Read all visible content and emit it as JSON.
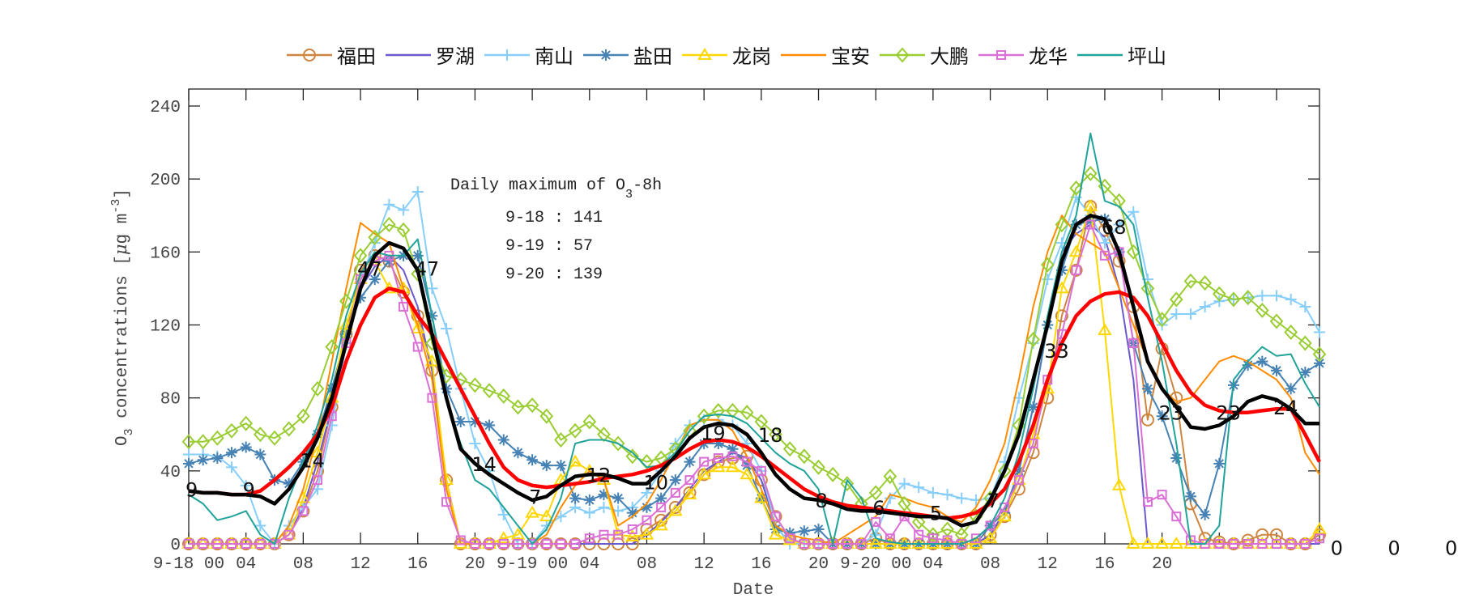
{
  "chart_data": {
    "type": "line",
    "xlabel": "Date",
    "ylabel": "O3 concentrations [μg m-3]",
    "ylabel_parts": {
      "pre": "O",
      "sub": "3",
      "mid": " concentrations [",
      "mu": "μ",
      "after_mu": "g m",
      "sup": "-3",
      "post": "]"
    },
    "ylim": [
      0,
      250
    ],
    "yticks": [
      0,
      40,
      80,
      120,
      160,
      200,
      240
    ],
    "x_hours_range": [
      0,
      79
    ],
    "xticks": [
      {
        "h": 0,
        "label": "9-18 00"
      },
      {
        "h": 4,
        "label": "04"
      },
      {
        "h": 8,
        "label": "08"
      },
      {
        "h": 12,
        "label": "12"
      },
      {
        "h": 16,
        "label": "16"
      },
      {
        "h": 20,
        "label": "20"
      },
      {
        "h": 24,
        "label": "9-19 00"
      },
      {
        "h": 28,
        "label": "04"
      },
      {
        "h": 32,
        "label": "08"
      },
      {
        "h": 36,
        "label": "12"
      },
      {
        "h": 40,
        "label": "16"
      },
      {
        "h": 44,
        "label": "20"
      },
      {
        "h": 48,
        "label": "9-20 00"
      },
      {
        "h": 52,
        "label": "04"
      },
      {
        "h": 56,
        "label": "08"
      },
      {
        "h": 60,
        "label": "12"
      },
      {
        "h": 64,
        "label": "16"
      },
      {
        "h": 68,
        "label": "20"
      },
      {
        "h": 72,
        "label": ""
      },
      {
        "h": 76,
        "label": ""
      }
    ],
    "grid": false,
    "legend_placement": "top-outside",
    "series": [
      {
        "name": "福田",
        "color": "#CD853F",
        "marker": "circle",
        "values": [
          0,
          0,
          0,
          0,
          0,
          0,
          0,
          5,
          18,
          40,
          75,
          115,
          150,
          158,
          155,
          138,
          125,
          95,
          35,
          0,
          0,
          0,
          0,
          0,
          0,
          0,
          0,
          0,
          0,
          0,
          0,
          0,
          8,
          13,
          20,
          28,
          38,
          45,
          47,
          48,
          35,
          15,
          3,
          0,
          0,
          0,
          0,
          0,
          3,
          0,
          0,
          0,
          0,
          0,
          0,
          0,
          5,
          15,
          30,
          50,
          80,
          125,
          150,
          185,
          172,
          155,
          130,
          68,
          107,
          80,
          22,
          3,
          1,
          0,
          2,
          5,
          5,
          0,
          0,
          5
        ]
      },
      {
        "name": "罗湖",
        "color": "#6A5ACD",
        "marker": "none",
        "values": [
          0,
          0,
          0,
          0,
          0,
          0,
          0,
          5,
          20,
          45,
          75,
          112,
          140,
          152,
          158,
          150,
          130,
          95,
          35,
          0,
          0,
          0,
          0,
          0,
          0,
          0,
          0,
          0,
          0,
          0,
          0,
          0,
          5,
          12,
          20,
          30,
          40,
          45,
          50,
          47,
          35,
          10,
          0,
          0,
          0,
          0,
          0,
          0,
          0,
          0,
          0,
          0,
          0,
          0,
          0,
          0,
          5,
          18,
          40,
          75,
          120,
          160,
          170,
          175,
          168,
          140,
          90,
          0,
          0,
          0,
          0,
          0,
          0,
          0,
          0,
          0,
          0,
          0,
          0,
          0
        ]
      },
      {
        "name": "南山",
        "color": "#87CEFA",
        "marker": "plus",
        "values": [
          49,
          49,
          48,
          42,
          32,
          10,
          0,
          10,
          20,
          30,
          65,
          110,
          145,
          165,
          186,
          183,
          193,
          140,
          118,
          85,
          55,
          40,
          16,
          0,
          0,
          10,
          15,
          20,
          17,
          20,
          18,
          20,
          28,
          40,
          55,
          65,
          68,
          68,
          65,
          55,
          40,
          10,
          0,
          0,
          0,
          0,
          0,
          0,
          5,
          25,
          33,
          31,
          28,
          27,
          25,
          24,
          25,
          45,
          80,
          110,
          145,
          165,
          190,
          180,
          165,
          175,
          182,
          145,
          120,
          126,
          126,
          130,
          133,
          134,
          135,
          136,
          136,
          134,
          130,
          116
        ]
      },
      {
        "name": "盐田",
        "color": "#4682B4",
        "marker": "star",
        "values": [
          44,
          46,
          47,
          50,
          53,
          49,
          35,
          33,
          45,
          60,
          85,
          115,
          135,
          145,
          155,
          158,
          158,
          125,
          85,
          67,
          67,
          65,
          57,
          50,
          46,
          43,
          43,
          25,
          24,
          27,
          25,
          17,
          20,
          25,
          35,
          45,
          55,
          55,
          52,
          43,
          25,
          8,
          6,
          7,
          8,
          0,
          0,
          0,
          0,
          0,
          0,
          0,
          0,
          0,
          0,
          0,
          10,
          17,
          40,
          75,
          120,
          150,
          175,
          177,
          178,
          160,
          110,
          85,
          70,
          47,
          26,
          16,
          44,
          87,
          98,
          100,
          95,
          85,
          94,
          99
        ]
      },
      {
        "name": "龙岗",
        "color": "#FFD700",
        "marker": "triangle",
        "values": [
          0,
          0,
          0,
          0,
          0,
          0,
          0,
          5,
          25,
          50,
          80,
          120,
          145,
          155,
          140,
          140,
          118,
          100,
          35,
          0,
          0,
          0,
          3,
          5,
          17,
          15,
          35,
          45,
          40,
          35,
          5,
          4,
          5,
          10,
          18,
          27,
          38,
          42,
          42,
          38,
          25,
          5,
          2,
          0,
          0,
          0,
          0,
          0,
          0,
          0,
          0,
          0,
          0,
          0,
          0,
          0,
          3,
          15,
          35,
          60,
          85,
          140,
          160,
          185,
          117,
          32,
          0,
          0,
          0,
          0,
          0,
          0,
          0,
          0,
          0,
          0,
          0,
          0,
          0,
          8
        ]
      },
      {
        "name": "宝安",
        "color": "#FF8C00",
        "marker": "none",
        "values": [
          0,
          0,
          0,
          0,
          0,
          0,
          0,
          10,
          30,
          60,
          100,
          140,
          176,
          170,
          165,
          140,
          120,
          90,
          30,
          0,
          0,
          0,
          0,
          0,
          0,
          5,
          20,
          32,
          40,
          35,
          10,
          15,
          22,
          35,
          50,
          65,
          68,
          68,
          62,
          48,
          30,
          10,
          5,
          3,
          2,
          0,
          5,
          10,
          15,
          27,
          25,
          22,
          20,
          15,
          12,
          20,
          35,
          55,
          90,
          130,
          160,
          180,
          170,
          165,
          160,
          140,
          120,
          100,
          85,
          78,
          80,
          90,
          100,
          103,
          100,
          95,
          90,
          80,
          50,
          38
        ]
      },
      {
        "name": "大鹏",
        "color": "#9ACD32",
        "marker": "diamond",
        "values": [
          56,
          56,
          58,
          62,
          66,
          60,
          58,
          63,
          70,
          85,
          108,
          133,
          158,
          168,
          175,
          172,
          148,
          110,
          92,
          90,
          87,
          84,
          81,
          75,
          76,
          70,
          57,
          62,
          67,
          60,
          55,
          48,
          45,
          47,
          52,
          62,
          70,
          73,
          73,
          72,
          67,
          60,
          52,
          48,
          42,
          38,
          33,
          22,
          28,
          37,
          22,
          12,
          5,
          8,
          5,
          15,
          25,
          40,
          65,
          112,
          153,
          175,
          195,
          203,
          196,
          188,
          160,
          140,
          123,
          134,
          144,
          143,
          137,
          134,
          135,
          128,
          122,
          116,
          110,
          104
        ]
      },
      {
        "name": "龙华",
        "color": "#DA70D6",
        "marker": "square",
        "values": [
          0,
          0,
          0,
          0,
          0,
          0,
          0,
          5,
          18,
          35,
          70,
          110,
          145,
          155,
          158,
          130,
          108,
          80,
          23,
          2,
          0,
          0,
          0,
          0,
          0,
          0,
          0,
          0,
          3,
          5,
          5,
          8,
          13,
          20,
          28,
          35,
          45,
          47,
          48,
          45,
          40,
          15,
          3,
          0,
          0,
          0,
          0,
          0,
          12,
          3,
          15,
          5,
          3,
          2,
          0,
          3,
          10,
          20,
          35,
          55,
          90,
          115,
          150,
          175,
          158,
          160,
          110,
          23,
          27,
          15,
          2,
          0,
          0,
          0,
          0,
          0,
          0,
          0,
          0,
          3
        ]
      },
      {
        "name": "坪山",
        "color": "#20A39A",
        "marker": "none",
        "values": [
          27,
          22,
          13,
          15,
          18,
          5,
          0,
          25,
          45,
          65,
          90,
          125,
          148,
          160,
          158,
          158,
          167,
          125,
          80,
          55,
          35,
          30,
          20,
          10,
          0,
          8,
          25,
          55,
          57,
          57,
          55,
          50,
          42,
          43,
          50,
          62,
          70,
          71,
          70,
          66,
          58,
          50,
          44,
          40,
          30,
          0,
          35,
          25,
          3,
          1,
          0,
          0,
          0,
          0,
          0,
          3,
          10,
          25,
          50,
          85,
          125,
          160,
          180,
          225,
          188,
          185,
          175,
          135,
          100,
          55,
          0,
          0,
          10,
          90,
          100,
          108,
          103,
          104,
          88,
          75
        ]
      },
      {
        "color": "#000000",
        "marker": "none",
        "thick": true,
        "values": [
          29,
          28,
          28,
          27,
          27,
          26,
          22,
          30,
          42,
          58,
          80,
          110,
          140,
          158,
          165,
          162,
          150,
          115,
          80,
          52,
          44,
          38,
          33,
          28,
          24,
          26,
          32,
          37,
          38,
          38,
          36,
          33,
          33,
          40,
          48,
          58,
          64,
          66,
          65,
          60,
          50,
          38,
          30,
          25,
          24,
          22,
          19,
          18,
          18,
          17,
          16,
          15,
          15,
          14,
          10,
          12,
          24,
          40,
          60,
          90,
          120,
          155,
          175,
          180,
          178,
          160,
          130,
          100,
          85,
          75,
          64,
          63,
          65,
          70,
          78,
          81,
          79,
          74,
          66,
          66
        ]
      },
      {
        "color": "#FF0000",
        "marker": "none",
        "thick": true,
        "values": [
          29,
          28,
          28,
          27,
          27,
          29,
          35,
          42,
          50,
          60,
          75,
          100,
          120,
          135,
          140,
          138,
          125,
          115,
          100,
          85,
          70,
          55,
          42,
          35,
          32,
          31,
          32,
          33,
          34,
          36,
          37,
          38,
          40,
          43,
          47,
          52,
          56,
          57,
          56,
          53,
          48,
          42,
          36,
          30,
          26,
          23,
          21,
          20,
          19,
          18,
          17,
          16,
          15,
          14,
          15,
          17,
          22,
          30,
          45,
          65,
          90,
          110,
          125,
          133,
          137,
          138,
          135,
          125,
          110,
          95,
          83,
          76,
          73,
          72,
          72,
          73,
          74,
          74,
          60,
          45
        ]
      }
    ],
    "annotations": [
      {
        "h": 0,
        "v": 26,
        "text": "9"
      },
      {
        "h": 4,
        "v": 26,
        "text": "9"
      },
      {
        "h": 8,
        "v": 42,
        "text": "14"
      },
      {
        "h": 12,
        "v": 147,
        "text": "47"
      },
      {
        "h": 16,
        "v": 147,
        "text": "47"
      },
      {
        "h": 20,
        "v": 40,
        "text": "14"
      },
      {
        "h": 24,
        "v": 22,
        "text": "7"
      },
      {
        "h": 28,
        "v": 34,
        "text": "12"
      },
      {
        "h": 32,
        "v": 30,
        "text": "10"
      },
      {
        "h": 36,
        "v": 57,
        "text": "19"
      },
      {
        "h": 40,
        "v": 56,
        "text": "18"
      },
      {
        "h": 44,
        "v": 20,
        "text": "8"
      },
      {
        "h": 48,
        "v": 16,
        "text": "6"
      },
      {
        "h": 52,
        "v": 13,
        "text": "5"
      },
      {
        "h": 56,
        "v": 20,
        "text": "7"
      },
      {
        "h": 60,
        "v": 102,
        "text": "33"
      },
      {
        "h": 64,
        "v": 170,
        "text": "68"
      },
      {
        "h": 68,
        "v": 68,
        "text": "23"
      },
      {
        "h": 72,
        "v": 68,
        "text": "23"
      },
      {
        "h": 76,
        "v": 71,
        "text": "24"
      },
      {
        "h": 80,
        "v": -6,
        "text": "0"
      },
      {
        "h": 84,
        "v": -6,
        "text": "0"
      },
      {
        "h": 88,
        "v": -6,
        "text": "0"
      }
    ],
    "textbox": {
      "title_pre": "Daily maximum of O",
      "title_sub": "3",
      "title_post": "-8h",
      "lines": [
        "9-18 : 141",
        "9-19 : 57",
        "9-20 : 139"
      ]
    }
  }
}
